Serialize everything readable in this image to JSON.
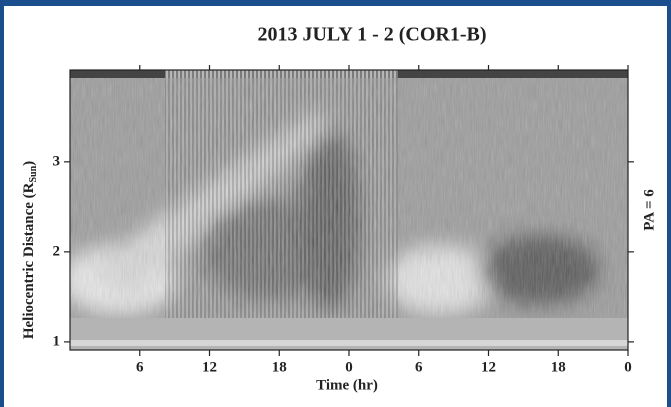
{
  "chart_data": {
    "type": "image",
    "title": "2013 JULY 1 - 2 (COR1-B)",
    "x_label": "Time (hr)",
    "y_label": [
      "Heliocentric Distance (R",
      "Sun",
      ")"
    ],
    "right_label": "PA = 6",
    "xlim": [
      0,
      48
    ],
    "xticks": [
      6,
      12,
      18,
      {
        "value": 24,
        "label": "0"
      },
      {
        "value": 30,
        "label": "6"
      },
      {
        "value": 36,
        "label": "12"
      },
      {
        "value": 42,
        "label": "18"
      },
      {
        "value": 48,
        "label": "0"
      }
    ],
    "ylim": [
      0.91,
      4.02
    ],
    "yticks": [
      1,
      2,
      3
    ]
  }
}
